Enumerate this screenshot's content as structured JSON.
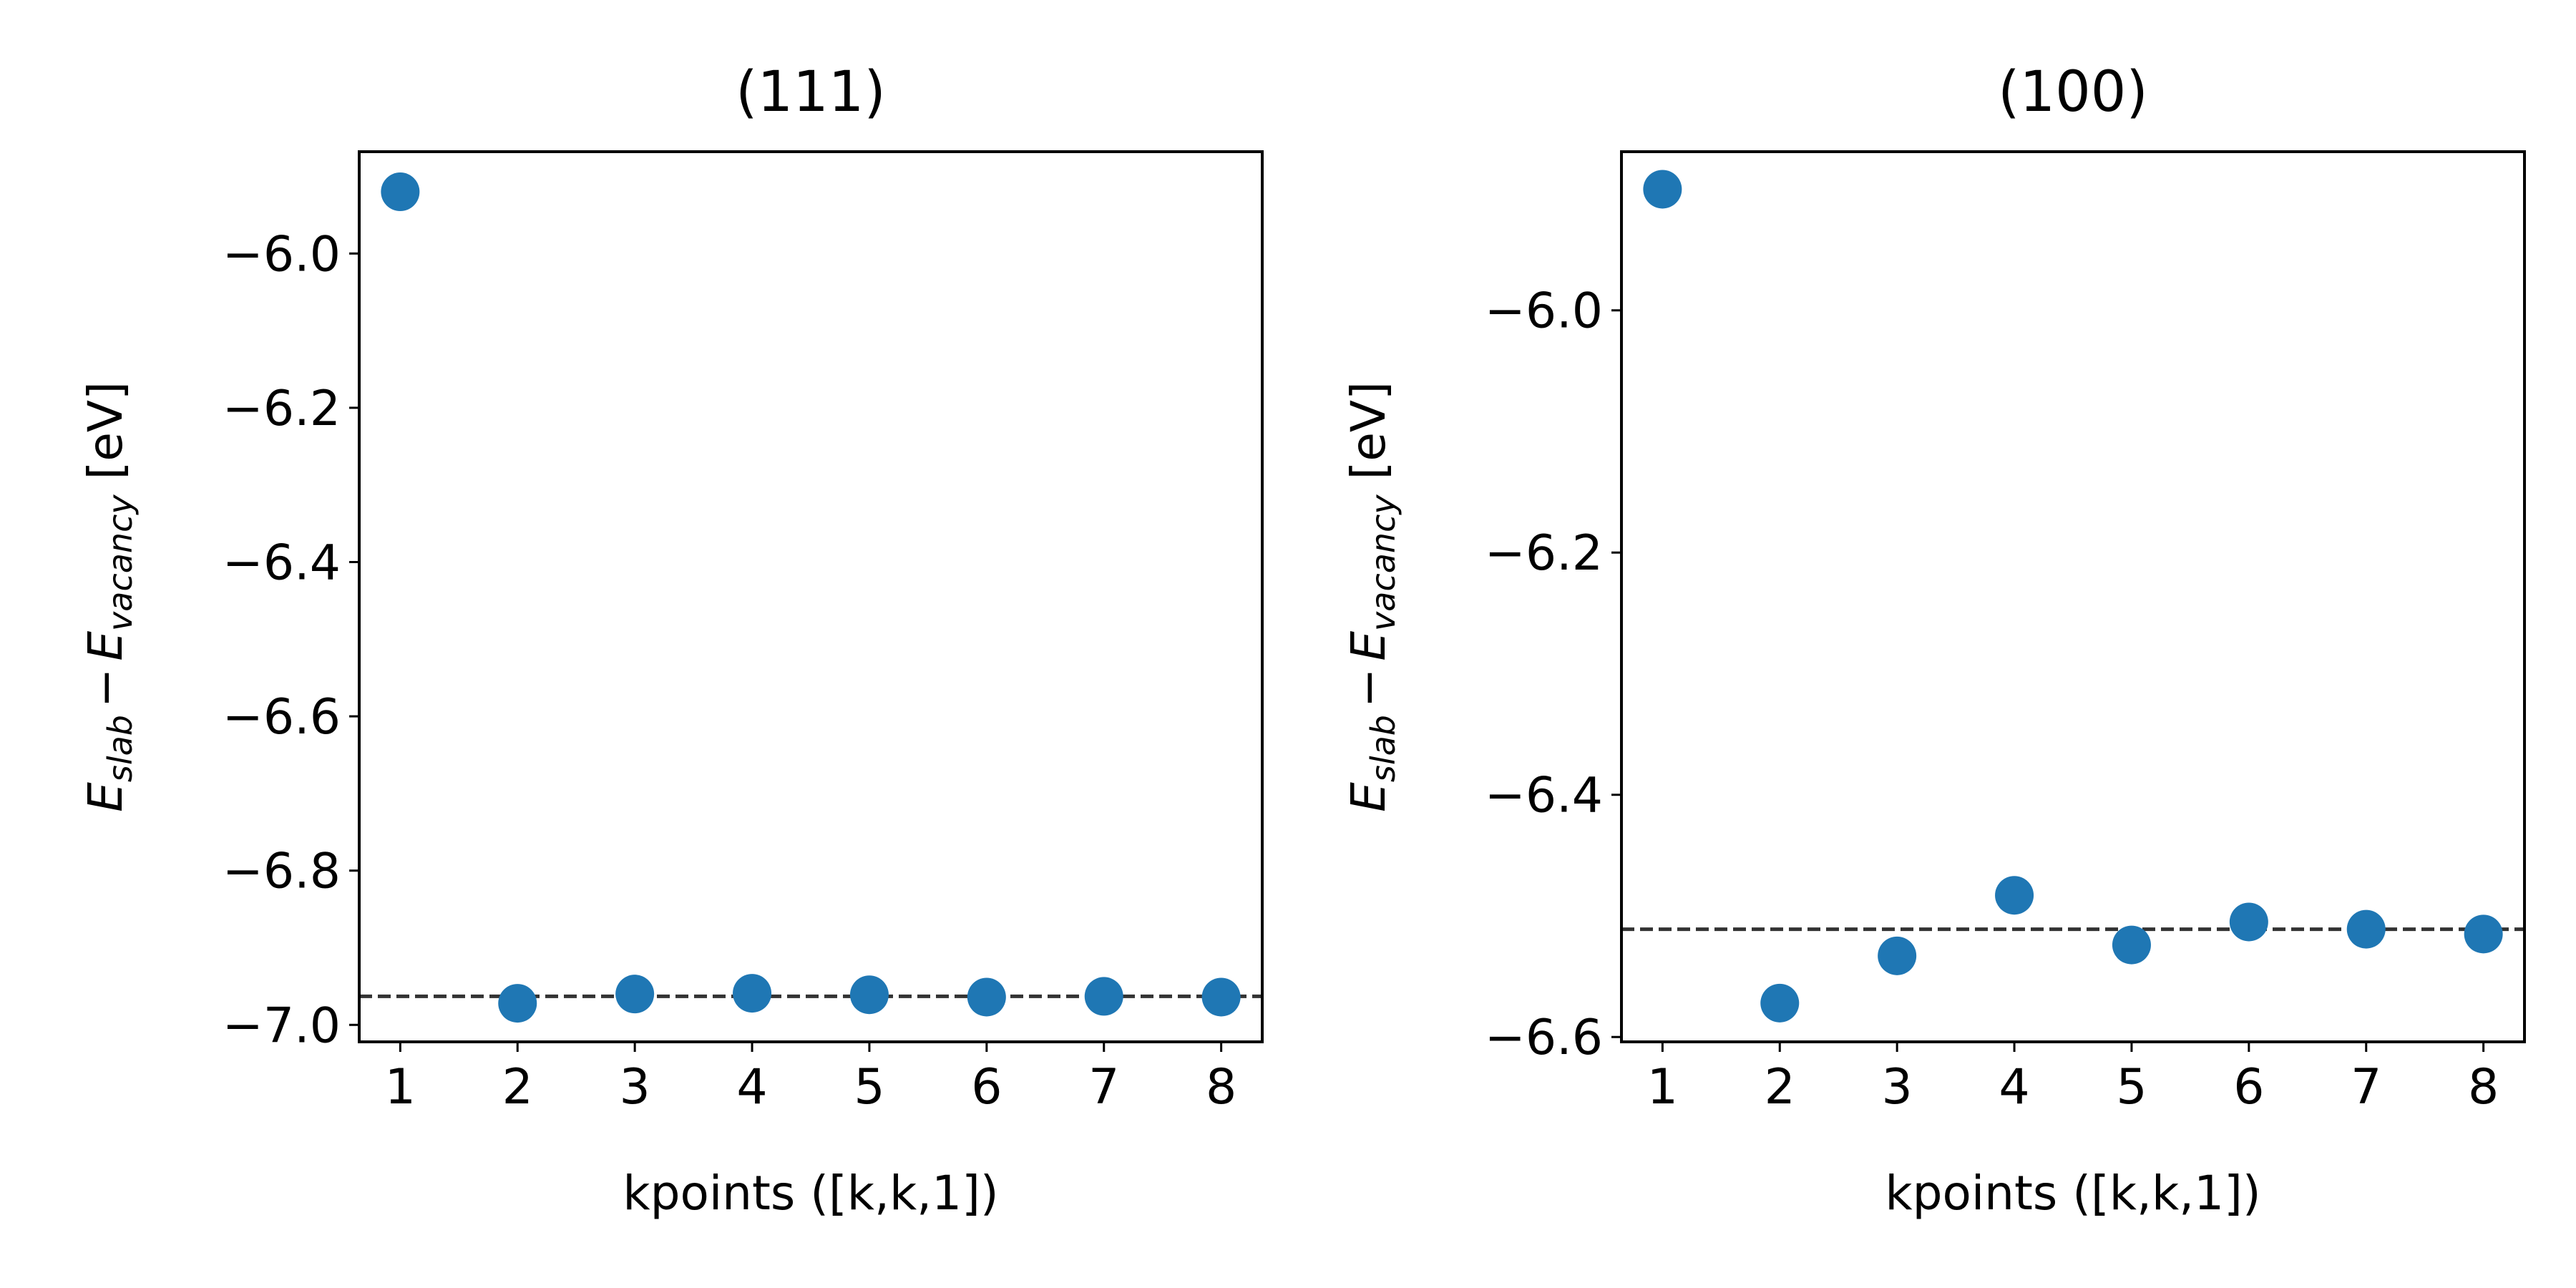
{
  "chart_data": [
    {
      "type": "scatter",
      "title": "(111)",
      "xlabel": "kpoints ([k,k,1])",
      "ylabel": {
        "E1": "E",
        "sub1": "slab",
        "minus": "−",
        "E2": "E",
        "sub2": "vacancy",
        "unit": " [eV]"
      },
      "xlim": [
        0.65,
        8.35
      ],
      "ylim": [
        -7.022,
        -5.868
      ],
      "xticks": [
        1,
        2,
        3,
        4,
        5,
        6,
        7,
        8
      ],
      "xtick_labels": [
        "1",
        "2",
        "3",
        "4",
        "5",
        "6",
        "7",
        "8"
      ],
      "yticks": [
        -6.0,
        -6.2,
        -6.4,
        -6.6,
        -6.8,
        -7.0
      ],
      "ytick_labels": [
        "−6.0",
        "−6.2",
        "−6.4",
        "−6.6",
        "−6.8",
        "−7.0"
      ],
      "grid": false,
      "legend": false,
      "x": [
        1,
        2,
        3,
        4,
        5,
        6,
        7,
        8
      ],
      "y": [
        -5.92,
        -6.972,
        -6.96,
        -6.959,
        -6.961,
        -6.964,
        -6.963,
        -6.964
      ],
      "reference_line": -6.963,
      "marker_color": "#1f77b4",
      "reference_line_color": "#333333"
    },
    {
      "type": "scatter",
      "title": "(100)",
      "xlabel": "kpoints ([k,k,1])",
      "ylabel": {
        "E1": "E",
        "sub1": "slab",
        "minus": "−",
        "E2": "E",
        "sub2": "vacancy",
        "unit": " [eV]"
      },
      "xlim": [
        0.65,
        8.35
      ],
      "ylim": [
        -6.604,
        -5.869
      ],
      "xticks": [
        1,
        2,
        3,
        4,
        5,
        6,
        7,
        8
      ],
      "xtick_labels": [
        "1",
        "2",
        "3",
        "4",
        "5",
        "6",
        "7",
        "8"
      ],
      "yticks": [
        -6.0,
        -6.2,
        -6.4,
        -6.6
      ],
      "ytick_labels": [
        "−6.0",
        "−6.2",
        "−6.4",
        "−6.6"
      ],
      "grid": false,
      "legend": false,
      "x": [
        1,
        2,
        3,
        4,
        5,
        6,
        7,
        8
      ],
      "y": [
        -5.9,
        -6.572,
        -6.533,
        -6.483,
        -6.524,
        -6.505,
        -6.511,
        -6.515
      ],
      "reference_line": -6.511,
      "marker_color": "#1f77b4",
      "reference_line_color": "#333333"
    }
  ]
}
